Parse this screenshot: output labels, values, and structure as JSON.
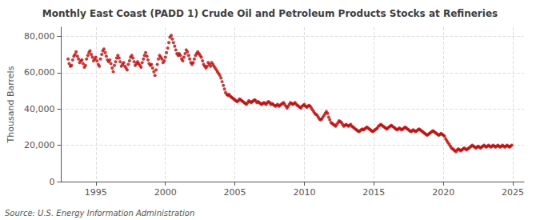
{
  "chart_data": {
    "type": "scatter",
    "title": "Monthly East Coast (PADD 1) Crude Oil and Petroleum Products Stocks at Refineries",
    "ylabel": "Thousand Barrels",
    "source": "Source: U.S. Energy Information Administration",
    "color": "#cc0000",
    "grid": true,
    "xlim": [
      1992.5,
      2025.8
    ],
    "xticks": [
      1995,
      2000,
      2005,
      2010,
      2015,
      2020,
      2025
    ],
    "ylim": [
      0,
      85000
    ],
    "yticks": [
      0,
      {
        "value": 20000,
        "label": "20,000"
      },
      {
        "value": 40000,
        "label": "40,000"
      },
      {
        "value": 60000,
        "label": "60,000"
      },
      {
        "value": 80000,
        "label": "80,000"
      }
    ],
    "x": [
      1993.0,
      1993.08,
      1993.17,
      1993.25,
      1993.33,
      1993.42,
      1993.5,
      1993.58,
      1993.67,
      1993.75,
      1993.83,
      1993.92,
      1994.0,
      1994.08,
      1994.17,
      1994.25,
      1994.33,
      1994.42,
      1994.5,
      1994.58,
      1994.67,
      1994.75,
      1994.83,
      1994.92,
      1995.0,
      1995.08,
      1995.17,
      1995.25,
      1995.33,
      1995.42,
      1995.5,
      1995.58,
      1995.67,
      1995.75,
      1995.83,
      1995.92,
      1996.0,
      1996.08,
      1996.17,
      1996.25,
      1996.33,
      1996.42,
      1996.5,
      1996.58,
      1996.67,
      1996.75,
      1996.83,
      1996.92,
      1997.0,
      1997.08,
      1997.17,
      1997.25,
      1997.33,
      1997.42,
      1997.5,
      1997.58,
      1997.67,
      1997.75,
      1997.83,
      1997.92,
      1998.0,
      1998.08,
      1998.17,
      1998.25,
      1998.33,
      1998.42,
      1998.5,
      1998.58,
      1998.67,
      1998.75,
      1998.83,
      1998.92,
      1999.0,
      1999.08,
      1999.17,
      1999.25,
      1999.33,
      1999.42,
      1999.5,
      1999.58,
      1999.67,
      1999.75,
      1999.83,
      1999.92,
      2000.0,
      2000.08,
      2000.17,
      2000.25,
      2000.33,
      2000.42,
      2000.5,
      2000.58,
      2000.67,
      2000.75,
      2000.83,
      2000.92,
      2001.0,
      2001.08,
      2001.17,
      2001.25,
      2001.33,
      2001.42,
      2001.5,
      2001.58,
      2001.67,
      2001.75,
      2001.83,
      2001.92,
      2002.0,
      2002.08,
      2002.17,
      2002.25,
      2002.33,
      2002.42,
      2002.5,
      2002.58,
      2002.67,
      2002.75,
      2002.83,
      2002.92,
      2003.0,
      2003.08,
      2003.17,
      2003.25,
      2003.33,
      2003.42,
      2003.5,
      2003.58,
      2003.67,
      2003.75,
      2003.83,
      2003.92,
      2004.0,
      2004.08,
      2004.17,
      2004.25,
      2004.33,
      2004.42,
      2004.5,
      2004.58,
      2004.67,
      2004.75,
      2004.83,
      2004.92,
      2005.0,
      2005.08,
      2005.17,
      2005.25,
      2005.33,
      2005.42,
      2005.5,
      2005.58,
      2005.67,
      2005.75,
      2005.83,
      2005.92,
      2006.0,
      2006.08,
      2006.17,
      2006.25,
      2006.33,
      2006.42,
      2006.5,
      2006.58,
      2006.67,
      2006.75,
      2006.83,
      2006.92,
      2007.0,
      2007.08,
      2007.17,
      2007.25,
      2007.33,
      2007.42,
      2007.5,
      2007.58,
      2007.67,
      2007.75,
      2007.83,
      2007.92,
      2008.0,
      2008.08,
      2008.17,
      2008.25,
      2008.33,
      2008.42,
      2008.5,
      2008.58,
      2008.67,
      2008.75,
      2008.83,
      2008.92,
      2009.0,
      2009.08,
      2009.17,
      2009.25,
      2009.33,
      2009.42,
      2009.5,
      2009.58,
      2009.67,
      2009.75,
      2009.83,
      2009.92,
      2010.0,
      2010.08,
      2010.17,
      2010.25,
      2010.33,
      2010.42,
      2010.5,
      2010.58,
      2010.67,
      2010.75,
      2010.83,
      2010.92,
      2011.0,
      2011.08,
      2011.17,
      2011.25,
      2011.33,
      2011.42,
      2011.5,
      2011.58,
      2011.67,
      2011.75,
      2011.83,
      2011.92,
      2012.0,
      2012.08,
      2012.17,
      2012.25,
      2012.33,
      2012.42,
      2012.5,
      2012.58,
      2012.67,
      2012.75,
      2012.83,
      2012.92,
      2013.0,
      2013.08,
      2013.17,
      2013.25,
      2013.33,
      2013.42,
      2013.5,
      2013.58,
      2013.67,
      2013.75,
      2013.83,
      2013.92,
      2014.0,
      2014.08,
      2014.17,
      2014.25,
      2014.33,
      2014.42,
      2014.5,
      2014.58,
      2014.67,
      2014.75,
      2014.83,
      2014.92,
      2015.0,
      2015.08,
      2015.17,
      2015.25,
      2015.33,
      2015.42,
      2015.5,
      2015.58,
      2015.67,
      2015.75,
      2015.83,
      2015.92,
      2016.0,
      2016.08,
      2016.17,
      2016.25,
      2016.33,
      2016.42,
      2016.5,
      2016.58,
      2016.67,
      2016.75,
      2016.83,
      2016.92,
      2017.0,
      2017.08,
      2017.17,
      2017.25,
      2017.33,
      2017.42,
      2017.5,
      2017.58,
      2017.67,
      2017.75,
      2017.83,
      2017.92,
      2018.0,
      2018.08,
      2018.17,
      2018.25,
      2018.33,
      2018.42,
      2018.5,
      2018.58,
      2018.67,
      2018.75,
      2018.83,
      2018.92,
      2019.0,
      2019.08,
      2019.17,
      2019.25,
      2019.33,
      2019.42,
      2019.5,
      2019.58,
      2019.67,
      2019.75,
      2019.83,
      2019.92,
      2020.0,
      2020.08,
      2020.17,
      2020.25,
      2020.33,
      2020.42,
      2020.5,
      2020.58,
      2020.67,
      2020.75,
      2020.83,
      2020.92,
      2021.0,
      2021.08,
      2021.17,
      2021.25,
      2021.33,
      2021.42,
      2021.5,
      2021.58,
      2021.67,
      2021.75,
      2021.83,
      2021.92,
      2022.0,
      2022.08,
      2022.17,
      2022.25,
      2022.33,
      2022.42,
      2022.5,
      2022.58,
      2022.67,
      2022.75,
      2022.83,
      2022.92,
      2023.0,
      2023.08,
      2023.17,
      2023.25,
      2023.33,
      2023.42,
      2023.5,
      2023.58,
      2023.67,
      2023.75,
      2023.83,
      2023.92,
      2024.0,
      2024.08,
      2024.17,
      2024.25,
      2024.33,
      2024.42,
      2024.5,
      2024.58,
      2024.67,
      2024.75,
      2024.83,
      2024.92
    ],
    "values": [
      67500,
      65000,
      63500,
      64000,
      67000,
      69000,
      70000,
      71500,
      69000,
      67500,
      65500,
      66500,
      67000,
      65000,
      63000,
      64000,
      67500,
      69500,
      71000,
      72000,
      70000,
      68500,
      66500,
      67500,
      68500,
      66500,
      64500,
      63500,
      67500,
      70000,
      72000,
      73000,
      71000,
      69000,
      67000,
      66000,
      67000,
      65000,
      62500,
      60500,
      64000,
      66000,
      68000,
      69500,
      68000,
      66000,
      63500,
      64500,
      65500,
      63500,
      62500,
      61500,
      64500,
      66500,
      68500,
      69500,
      68000,
      66000,
      64000,
      65000,
      66000,
      65000,
      64000,
      63000,
      65500,
      67500,
      69500,
      71000,
      69000,
      67000,
      65000,
      64000,
      64500,
      62500,
      60500,
      58500,
      61500,
      64500,
      67500,
      69500,
      68500,
      67500,
      65500,
      66500,
      68500,
      71000,
      73500,
      76500,
      79500,
      80500,
      78500,
      76500,
      74500,
      72500,
      70500,
      69500,
      70500,
      69500,
      67500,
      66500,
      68500,
      70500,
      72500,
      71500,
      69500,
      67500,
      65500,
      64500,
      65500,
      67500,
      69500,
      70500,
      71500,
      70500,
      69500,
      68500,
      66500,
      64500,
      63500,
      62500,
      63500,
      65500,
      64500,
      63500,
      65500,
      64500,
      63500,
      62500,
      61500,
      60500,
      59500,
      58500,
      57000,
      55000,
      53000,
      51000,
      49000,
      48000,
      47500,
      48000,
      47000,
      46500,
      46000,
      45500,
      45000,
      44500,
      44000,
      44500,
      45500,
      45000,
      44500,
      44000,
      43500,
      43000,
      42500,
      43500,
      44500,
      44000,
      43500,
      44000,
      44500,
      45000,
      44500,
      43500,
      44000,
      43500,
      43000,
      42500,
      43000,
      43500,
      43000,
      42500,
      43500,
      44000,
      43500,
      42500,
      43000,
      42500,
      42000,
      41500,
      42000,
      42500,
      41500,
      42000,
      42500,
      43000,
      43500,
      42500,
      41500,
      40500,
      41500,
      42500,
      43500,
      43000,
      42500,
      43000,
      43500,
      42500,
      42000,
      41500,
      41000,
      40500,
      41500,
      42000,
      42500,
      41500,
      41000,
      41500,
      42000,
      41500,
      40500,
      39500,
      38500,
      37500,
      37000,
      36500,
      35500,
      34500,
      34000,
      34500,
      35500,
      36500,
      37500,
      38500,
      37500,
      35500,
      34000,
      32500,
      32000,
      31500,
      31000,
      30500,
      31500,
      32500,
      33500,
      33000,
      32500,
      31500,
      30500,
      31000,
      31500,
      31000,
      30500,
      31000,
      31500,
      30500,
      30000,
      29500,
      29000,
      28500,
      28000,
      27500,
      28000,
      28500,
      29000,
      28500,
      29000,
      29500,
      30000,
      29500,
      29000,
      28500,
      28000,
      27500,
      28000,
      28500,
      29000,
      29500,
      30500,
      31000,
      31500,
      31000,
      30500,
      30000,
      29500,
      29000,
      29500,
      30000,
      30500,
      31000,
      30500,
      30000,
      29500,
      29000,
      28500,
      29000,
      29500,
      29000,
      28500,
      29000,
      29500,
      30000,
      29500,
      29000,
      28500,
      28000,
      27500,
      28000,
      28500,
      28000,
      27500,
      28000,
      28500,
      29000,
      28500,
      28000,
      27500,
      27000,
      26500,
      26000,
      25500,
      26000,
      26500,
      27000,
      27500,
      28000,
      27500,
      27000,
      26500,
      26000,
      25500,
      26000,
      26500,
      26000,
      25500,
      25000,
      23500,
      22500,
      21500,
      20500,
      19500,
      18500,
      18000,
      17500,
      17000,
      16500,
      17500,
      18000,
      17500,
      17000,
      17500,
      18000,
      18500,
      18000,
      17500,
      18000,
      18500,
      19000,
      19500,
      20000,
      19500,
      19000,
      18500,
      19000,
      19500,
      19000,
      18500,
      19000,
      19500,
      20000,
      19500,
      19000,
      19500,
      20000,
      19500,
      19000,
      19500,
      20000,
      19500,
      19000,
      19500,
      20000,
      19500,
      19000,
      19500,
      20000,
      19500,
      19000,
      19500,
      20000,
      19500,
      19000,
      19500,
      20000
    ]
  }
}
